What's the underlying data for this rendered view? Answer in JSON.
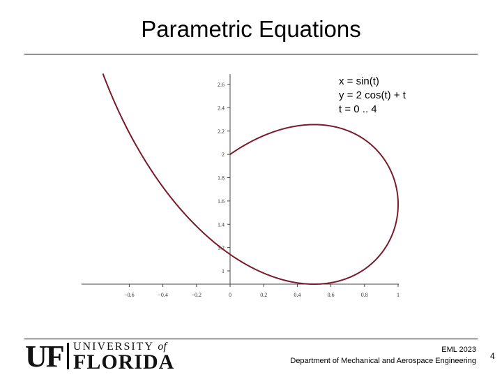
{
  "slide": {
    "title": "Parametric Equations",
    "number": "4"
  },
  "equations": [
    "x = sin(t)",
    "y = 2 cos(t) + t",
    "t = 0 .. 4"
  ],
  "logo": {
    "line1": "UNIVERSITY",
    "of": "of",
    "line2": "FLORIDA",
    "mark": "UF"
  },
  "footer": {
    "course": "EML 2023",
    "department": "Department of Mechanical and Aerospace Engineering"
  },
  "colors": {
    "curve": "#7a1a2a",
    "axis": "#444444"
  },
  "chart_data": {
    "type": "line",
    "title": "",
    "xlabel": "",
    "ylabel": "",
    "series": [
      {
        "x_expr": "sin(t)",
        "y_expr": "2*cos(t)+t",
        "t_range": [
          0,
          4
        ]
      }
    ],
    "xlim": [
      -0.76,
      1.0
    ],
    "ylim": [
      0.88,
      2.62
    ],
    "x_ticks": [
      -0.6,
      -0.4,
      -0.2,
      0,
      0.2,
      0.4,
      0.6,
      0.8,
      1
    ],
    "x_tick_labels": [
      "−0.6",
      "−0.4",
      "−0.2",
      "0",
      "0.2",
      "0.4",
      "0.6",
      "0.8",
      "1"
    ],
    "y_ticks": [
      1,
      1.2,
      1.4,
      1.6,
      1.8,
      2,
      2.2,
      2.4,
      2.6
    ],
    "y_tick_labels": [
      "1",
      "1.2",
      "1.4",
      "1.6",
      "1.8",
      "2",
      "2.2",
      "2.4",
      "2.6"
    ],
    "grid": false
  }
}
